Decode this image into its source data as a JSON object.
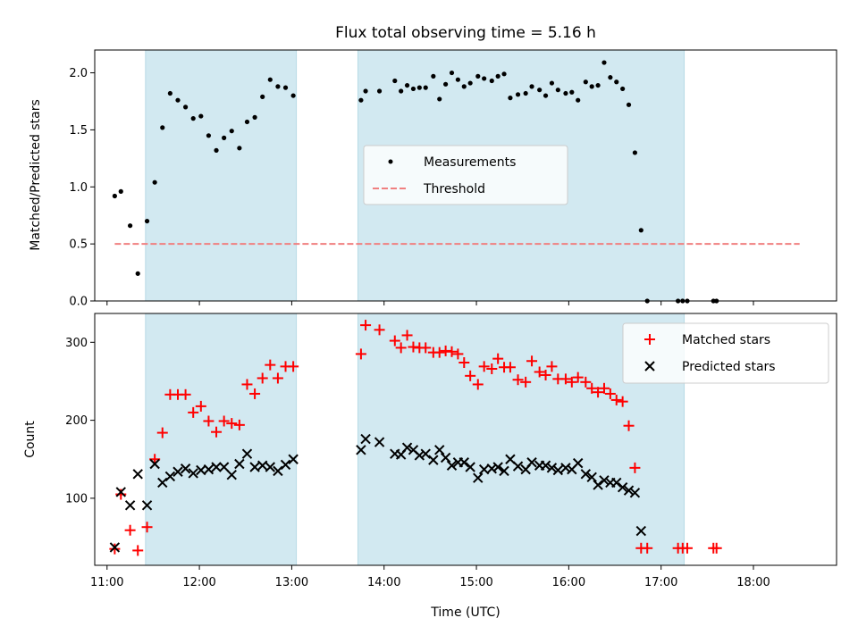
{
  "chart_data": {
    "title": "Flux total observing time = 5.16 h",
    "xlabel": "Time (UTC)",
    "x_ticks": [
      "11:00",
      "12:00",
      "13:00",
      "14:00",
      "15:00",
      "16:00",
      "17:00",
      "18:00"
    ],
    "xlim": [
      "10:52",
      "18:54"
    ],
    "observing_windows": [
      {
        "start": "11:25",
        "end": "13:03"
      },
      {
        "start": "13:43",
        "end": "17:15"
      }
    ],
    "colors": {
      "window": "#d2e9f1",
      "measurement": "#000000",
      "threshold": "#f08080",
      "matched": "#ff0000",
      "predicted": "#000000"
    },
    "panels": [
      {
        "type": "scatter",
        "ylabel": "Matched/Predicted stars",
        "ylim": [
          0,
          2.2
        ],
        "y_ticks": [
          "0.0",
          "0.5",
          "1.0",
          "1.5",
          "2.0"
        ],
        "legend": {
          "placement": "center",
          "entries": [
            "Measurements",
            "Threshold"
          ]
        },
        "threshold": {
          "name": "Threshold",
          "value": 0.5,
          "x_start": "11:05",
          "x_end": "18:30"
        },
        "series": [
          {
            "name": "Measurements",
            "points": [
              [
                "11:05",
                0.92
              ],
              [
                "11:09",
                0.96
              ],
              [
                "11:15",
                0.66
              ],
              [
                "11:20",
                0.24
              ],
              [
                "11:26",
                0.7
              ],
              [
                "11:31",
                1.04
              ],
              [
                "11:36",
                1.52
              ],
              [
                "11:41",
                1.82
              ],
              [
                "11:46",
                1.76
              ],
              [
                "11:51",
                1.7
              ],
              [
                "11:56",
                1.6
              ],
              [
                "12:01",
                1.62
              ],
              [
                "12:06",
                1.45
              ],
              [
                "12:11",
                1.32
              ],
              [
                "12:16",
                1.43
              ],
              [
                "12:21",
                1.49
              ],
              [
                "12:26",
                1.34
              ],
              [
                "12:31",
                1.57
              ],
              [
                "12:36",
                1.61
              ],
              [
                "12:41",
                1.79
              ],
              [
                "12:46",
                1.94
              ],
              [
                "12:51",
                1.88
              ],
              [
                "12:56",
                1.87
              ],
              [
                "13:01",
                1.8
              ],
              [
                "13:45",
                1.76
              ],
              [
                "13:48",
                1.84
              ],
              [
                "13:57",
                1.84
              ],
              [
                "14:07",
                1.93
              ],
              [
                "14:11",
                1.84
              ],
              [
                "14:15",
                1.89
              ],
              [
                "14:19",
                1.86
              ],
              [
                "14:23",
                1.87
              ],
              [
                "14:27",
                1.87
              ],
              [
                "14:32",
                1.97
              ],
              [
                "14:36",
                1.77
              ],
              [
                "14:40",
                1.9
              ],
              [
                "14:44",
                2.0
              ],
              [
                "14:48",
                1.94
              ],
              [
                "14:52",
                1.88
              ],
              [
                "14:56",
                1.91
              ],
              [
                "15:01",
                1.97
              ],
              [
                "15:05",
                1.95
              ],
              [
                "15:10",
                1.93
              ],
              [
                "15:14",
                1.97
              ],
              [
                "15:18",
                1.99
              ],
              [
                "15:22",
                1.78
              ],
              [
                "15:27",
                1.81
              ],
              [
                "15:32",
                1.82
              ],
              [
                "15:36",
                1.88
              ],
              [
                "15:41",
                1.85
              ],
              [
                "15:45",
                1.8
              ],
              [
                "15:49",
                1.91
              ],
              [
                "15:53",
                1.85
              ],
              [
                "15:58",
                1.82
              ],
              [
                "16:02",
                1.83
              ],
              [
                "16:06",
                1.76
              ],
              [
                "16:11",
                1.92
              ],
              [
                "16:15",
                1.88
              ],
              [
                "16:19",
                1.89
              ],
              [
                "16:23",
                2.09
              ],
              [
                "16:27",
                1.96
              ],
              [
                "16:31",
                1.92
              ],
              [
                "16:35",
                1.86
              ],
              [
                "16:39",
                1.72
              ],
              [
                "16:43",
                1.3
              ],
              [
                "16:47",
                0.62
              ],
              [
                "16:51",
                0.0
              ],
              [
                "17:11",
                0.0
              ],
              [
                "17:14",
                0.0
              ],
              [
                "17:17",
                0.0
              ],
              [
                "17:34",
                0.0
              ],
              [
                "17:36",
                0.0
              ]
            ]
          }
        ]
      },
      {
        "type": "scatter",
        "ylabel": "Count",
        "ylim": [
          14,
          337
        ],
        "y_ticks": [
          "100",
          "200",
          "300"
        ],
        "legend": {
          "placement": "top-right",
          "entries": [
            "Matched stars",
            "Predicted stars"
          ]
        },
        "series": [
          {
            "name": "Matched stars",
            "marker": "plus",
            "points": [
              [
                "11:05",
                35
              ],
              [
                "11:09",
                105
              ],
              [
                "11:15",
                59
              ],
              [
                "11:20",
                33
              ],
              [
                "11:26",
                63
              ],
              [
                "11:31",
                150
              ],
              [
                "11:36",
                184
              ],
              [
                "11:41",
                233
              ],
              [
                "11:46",
                233
              ],
              [
                "11:51",
                233
              ],
              [
                "11:56",
                210
              ],
              [
                "12:01",
                218
              ],
              [
                "12:06",
                199
              ],
              [
                "12:11",
                185
              ],
              [
                "12:16",
                199
              ],
              [
                "12:21",
                196
              ],
              [
                "12:26",
                194
              ],
              [
                "12:31",
                246
              ],
              [
                "12:36",
                234
              ],
              [
                "12:41",
                254
              ],
              [
                "12:46",
                271
              ],
              [
                "12:51",
                254
              ],
              [
                "12:56",
                269
              ],
              [
                "13:01",
                269
              ],
              [
                "13:45",
                285
              ],
              [
                "13:48",
                322
              ],
              [
                "13:57",
                316
              ],
              [
                "14:07",
                302
              ],
              [
                "14:11",
                293
              ],
              [
                "14:15",
                309
              ],
              [
                "14:19",
                294
              ],
              [
                "14:23",
                293
              ],
              [
                "14:27",
                293
              ],
              [
                "14:32",
                287
              ],
              [
                "14:36",
                287
              ],
              [
                "14:40",
                289
              ],
              [
                "14:44",
                288
              ],
              [
                "14:48",
                285
              ],
              [
                "14:52",
                274
              ],
              [
                "14:56",
                257
              ],
              [
                "15:01",
                246
              ],
              [
                "15:05",
                269
              ],
              [
                "15:10",
                266
              ],
              [
                "15:14",
                279
              ],
              [
                "15:18",
                268
              ],
              [
                "15:22",
                268
              ],
              [
                "15:27",
                252
              ],
              [
                "15:32",
                249
              ],
              [
                "15:36",
                276
              ],
              [
                "15:41",
                262
              ],
              [
                "15:45",
                258
              ],
              [
                "15:49",
                269
              ],
              [
                "15:53",
                253
              ],
              [
                "15:58",
                253
              ],
              [
                "16:02",
                249
              ],
              [
                "16:06",
                255
              ],
              [
                "16:11",
                249
              ],
              [
                "16:15",
                241
              ],
              [
                "16:19",
                236
              ],
              [
                "16:23",
                241
              ],
              [
                "16:27",
                234
              ],
              [
                "16:31",
                226
              ],
              [
                "16:35",
                224
              ],
              [
                "16:39",
                193
              ],
              [
                "16:43",
                139
              ],
              [
                "16:47",
                36
              ],
              [
                "16:51",
                36
              ],
              [
                "17:11",
                36
              ],
              [
                "17:14",
                36
              ],
              [
                "17:17",
                36
              ],
              [
                "17:34",
                36
              ],
              [
                "17:36",
                36
              ]
            ]
          },
          {
            "name": "Predicted stars",
            "marker": "x",
            "points": [
              [
                "11:05",
                37
              ],
              [
                "11:09",
                108
              ],
              [
                "11:15",
                91
              ],
              [
                "11:20",
                131
              ],
              [
                "11:26",
                91
              ],
              [
                "11:31",
                144
              ],
              [
                "11:36",
                120
              ],
              [
                "11:41",
                128
              ],
              [
                "11:46",
                134
              ],
              [
                "11:51",
                138
              ],
              [
                "11:56",
                132
              ],
              [
                "12:01",
                136
              ],
              [
                "12:06",
                137
              ],
              [
                "12:11",
                140
              ],
              [
                "12:16",
                140
              ],
              [
                "12:21",
                130
              ],
              [
                "12:26",
                144
              ],
              [
                "12:31",
                157
              ],
              [
                "12:36",
                140
              ],
              [
                "12:41",
                142
              ],
              [
                "12:46",
                140
              ],
              [
                "12:51",
                135
              ],
              [
                "12:56",
                143
              ],
              [
                "13:01",
                150
              ],
              [
                "13:45",
                162
              ],
              [
                "13:48",
                176
              ],
              [
                "13:57",
                172
              ],
              [
                "14:07",
                157
              ],
              [
                "14:11",
                156
              ],
              [
                "14:15",
                165
              ],
              [
                "14:19",
                162
              ],
              [
                "14:23",
                155
              ],
              [
                "14:27",
                157
              ],
              [
                "14:32",
                149
              ],
              [
                "14:36",
                162
              ],
              [
                "14:40",
                152
              ],
              [
                "14:44",
                142
              ],
              [
                "14:48",
                146
              ],
              [
                "14:52",
                146
              ],
              [
                "14:56",
                140
              ],
              [
                "15:01",
                126
              ],
              [
                "15:05",
                137
              ],
              [
                "15:10",
                138
              ],
              [
                "15:14",
                140
              ],
              [
                "15:18",
                135
              ],
              [
                "15:22",
                150
              ],
              [
                "15:27",
                141
              ],
              [
                "15:32",
                137
              ],
              [
                "15:36",
                146
              ],
              [
                "15:41",
                142
              ],
              [
                "15:45",
                142
              ],
              [
                "15:49",
                139
              ],
              [
                "15:53",
                136
              ],
              [
                "15:58",
                139
              ],
              [
                "16:02",
                137
              ],
              [
                "16:06",
                145
              ],
              [
                "16:11",
                131
              ],
              [
                "16:15",
                127
              ],
              [
                "16:19",
                117
              ],
              [
                "16:23",
                123
              ],
              [
                "16:27",
                120
              ],
              [
                "16:31",
                120
              ],
              [
                "16:35",
                114
              ],
              [
                "16:39",
                110
              ],
              [
                "16:43",
                107
              ],
              [
                "16:47",
                58
              ]
            ]
          }
        ]
      }
    ]
  }
}
